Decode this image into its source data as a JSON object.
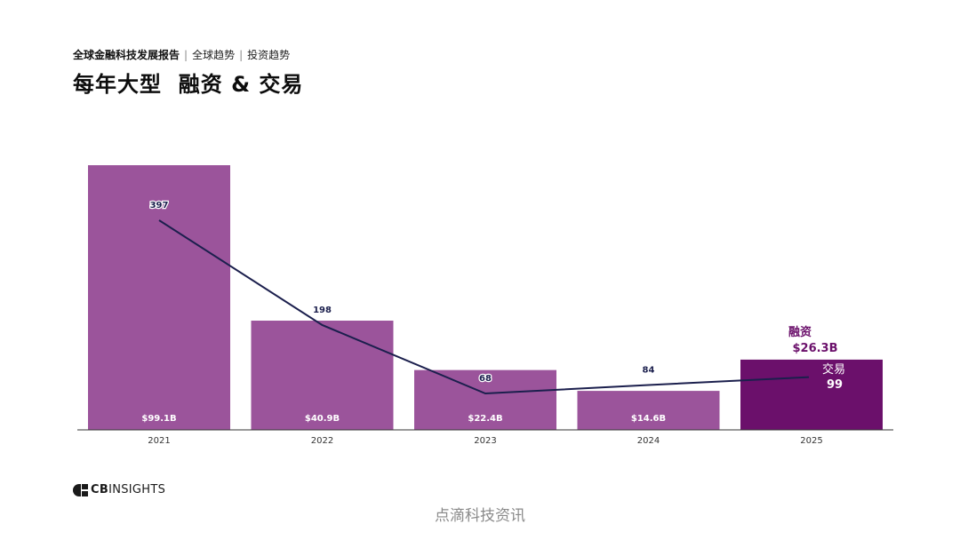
{
  "header": {
    "report_name": "全球金融科技发展报告",
    "section": "全球趋势",
    "subsection": "投资趋势",
    "title": "每年大型  融资 & 交易"
  },
  "chart_data": {
    "type": "bar",
    "categories": [
      "2021",
      "2022",
      "2023",
      "2024",
      "2025"
    ],
    "series": [
      {
        "name": "融资",
        "unit": "$B",
        "values": [
          99.1,
          40.9,
          22.4,
          14.6,
          26.3
        ],
        "labels": [
          "$99.1B",
          "$40.9B",
          "$22.4B",
          "$14.6B",
          "$26.3B"
        ]
      },
      {
        "name": "交易",
        "type": "line",
        "values": [
          397,
          198,
          68,
          84,
          99
        ],
        "labels": [
          "397",
          "198",
          "68",
          "84",
          "99"
        ]
      }
    ],
    "colors": {
      "bar": "#9b549b",
      "bar_highlight": "#6b106b",
      "line": "#1b1f4d",
      "axis": "#333333"
    },
    "highlight_index": 4,
    "legend_labels": {
      "funding": "融资",
      "deals": "交易"
    },
    "title": "每年大型  融资 & 交易",
    "xlabel": "",
    "ylabel": ""
  },
  "footer": {
    "logo_text_bold": "CB",
    "logo_text_thin": "INSIGHTS",
    "watermark": "点滴科技资讯"
  }
}
